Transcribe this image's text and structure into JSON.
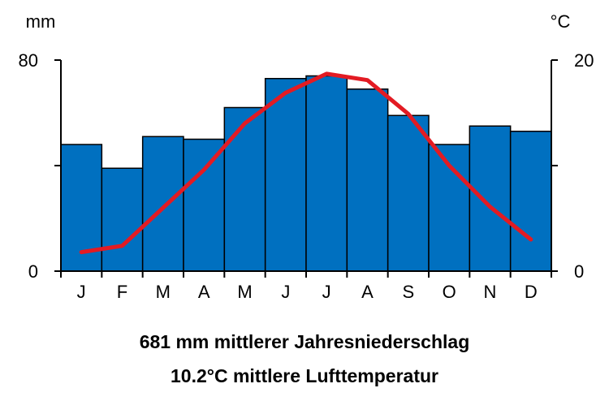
{
  "chart_data": {
    "type": "bar",
    "categories": [
      "J",
      "F",
      "M",
      "A",
      "M",
      "J",
      "J",
      "A",
      "S",
      "O",
      "N",
      "D"
    ],
    "series": [
      {
        "type": "bar",
        "axis": "left",
        "color": "#0070C0",
        "values": [
          48,
          39,
          51,
          50,
          62,
          73,
          74,
          69,
          59,
          48,
          55,
          53
        ]
      },
      {
        "type": "line",
        "axis": "right",
        "color": "#E31B23",
        "values": [
          1.8,
          2.4,
          6.0,
          9.6,
          14.0,
          16.9,
          18.7,
          18.1,
          14.9,
          10.0,
          6.1,
          3.0
        ]
      }
    ],
    "left_axis": {
      "unit": "mm",
      "range": [
        0,
        80
      ],
      "ticks": [
        "0",
        "80"
      ],
      "minor_tick": 40
    },
    "right_axis": {
      "unit": "°C",
      "range": [
        0,
        20
      ],
      "ticks": [
        "0",
        "20"
      ],
      "minor_tick": 10
    },
    "grid": false
  },
  "caption": {
    "line1": "681 mm mittlerer Jahresniederschlag",
    "line2": "10.2°C mittlere Lufttemperatur"
  }
}
